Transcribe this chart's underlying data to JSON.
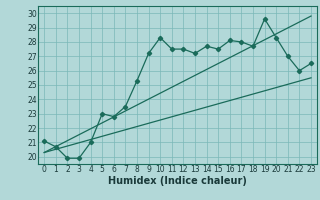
{
  "xlabel": "Humidex (Indice chaleur)",
  "bg_color": "#b2d8d8",
  "line_color": "#1a6b5a",
  "grid_color": "#7ab8b8",
  "spine_color": "#1a6b5a",
  "xlim": [
    -0.5,
    23.5
  ],
  "ylim": [
    19.5,
    30.5
  ],
  "xticks": [
    0,
    1,
    2,
    3,
    4,
    5,
    6,
    7,
    8,
    9,
    10,
    11,
    12,
    13,
    14,
    15,
    16,
    17,
    18,
    19,
    20,
    21,
    22,
    23
  ],
  "yticks": [
    20,
    21,
    22,
    23,
    24,
    25,
    26,
    27,
    28,
    29,
    30
  ],
  "series1_x": [
    0,
    1,
    2,
    3,
    4,
    5,
    6,
    7,
    8,
    9,
    10,
    11,
    12,
    13,
    14,
    15,
    16,
    17,
    18,
    19,
    20,
    21,
    22,
    23
  ],
  "series1_y": [
    21.1,
    20.7,
    19.9,
    19.9,
    21.0,
    23.0,
    22.8,
    23.5,
    25.3,
    27.2,
    28.3,
    27.5,
    27.5,
    27.2,
    27.7,
    27.5,
    28.1,
    28.0,
    27.7,
    29.6,
    28.3,
    27.0,
    26.0,
    26.5
  ],
  "series2_x": [
    0,
    23
  ],
  "series2_y": [
    20.3,
    25.5
  ],
  "series3_x": [
    0,
    23
  ],
  "series3_y": [
    20.3,
    29.8
  ],
  "xlabel_fontsize": 7,
  "tick_fontsize": 5.5,
  "xlabel_color": "#1a3a3a",
  "tick_color": "#1a3a3a"
}
